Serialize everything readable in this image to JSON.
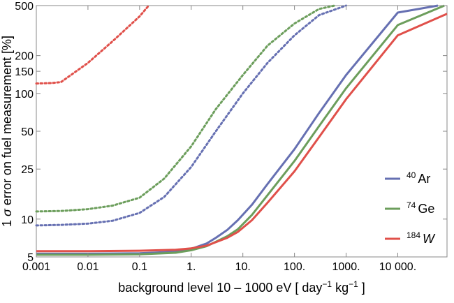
{
  "chart_data": {
    "type": "line",
    "xlabel_parts": [
      "background level 10 – 1000 eV [ day",
      "−1",
      " kg",
      "−1",
      " ]"
    ],
    "ylabel_parts": [
      "1 ",
      "σ",
      " error on fuel measurement [%]"
    ],
    "x_scale": "log",
    "y_scale": "log",
    "xlim": [
      0.001,
      90000
    ],
    "ylim": [
      5,
      500
    ],
    "grid": false,
    "legend_position": "right",
    "x_ticks": [
      0.001,
      0.01,
      0.1,
      1,
      10,
      100,
      1000,
      10000
    ],
    "x_tick_labels": [
      "0.001",
      "0.01",
      "0.1",
      "1.",
      "10.",
      "100.",
      "1000.",
      "10 000."
    ],
    "y_ticks": [
      5,
      10,
      25,
      50,
      100,
      150,
      200,
      500
    ],
    "y_tick_labels": [
      "5",
      "10",
      "25",
      "50",
      "100",
      "150",
      "200",
      "500"
    ],
    "series": [
      {
        "name": "40 Ar",
        "mass": "40",
        "symbol": "Ar",
        "italic": false,
        "color": "#6670b2",
        "style": "solid",
        "x": [
          0.001,
          0.01,
          0.1,
          0.5,
          1,
          2,
          3,
          5,
          8,
          15,
          30,
          100,
          300,
          1000,
          10000,
          60000
        ],
        "y": [
          5.3,
          5.3,
          5.35,
          5.5,
          5.8,
          6.4,
          7.1,
          8.2,
          9.8,
          13,
          19,
          36,
          70,
          140,
          440,
          500
        ]
      },
      {
        "name": "40 Ar (dotted)",
        "color": "#6670b2",
        "style": "dotted",
        "x": [
          0.001,
          0.003,
          0.01,
          0.03,
          0.1,
          0.3,
          1,
          3,
          10,
          30,
          100,
          300,
          1000
        ],
        "y": [
          8.9,
          9.0,
          9.2,
          9.7,
          11.2,
          15,
          26,
          50,
          100,
          175,
          290,
          420,
          500
        ]
      },
      {
        "name": "74 Ge",
        "mass": "74",
        "symbol": "Ge",
        "italic": false,
        "color": "#6c9e5c",
        "style": "solid",
        "x": [
          0.001,
          0.01,
          0.1,
          0.5,
          1,
          2,
          3,
          5,
          8,
          15,
          30,
          100,
          300,
          1000,
          10000,
          80000
        ],
        "y": [
          5.2,
          5.2,
          5.25,
          5.4,
          5.65,
          6.1,
          6.6,
          7.3,
          8.3,
          10.8,
          15.5,
          29,
          55,
          110,
          350,
          500
        ]
      },
      {
        "name": "74 Ge (dotted)",
        "color": "#6c9e5c",
        "style": "dotted",
        "x": [
          0.001,
          0.003,
          0.01,
          0.03,
          0.1,
          0.3,
          1,
          3,
          10,
          30,
          100,
          300,
          600
        ],
        "y": [
          11.5,
          11.6,
          12.0,
          12.8,
          14.8,
          21,
          38,
          75,
          140,
          240,
          360,
          470,
          500
        ]
      },
      {
        "name": "184 W",
        "mass": "184",
        "symbol": "W",
        "italic": true,
        "color": "#e0504a",
        "style": "solid",
        "x": [
          0.001,
          0.01,
          0.1,
          0.5,
          1,
          2,
          3,
          5,
          8,
          15,
          30,
          100,
          300,
          1000,
          10000,
          90000
        ],
        "y": [
          5.55,
          5.55,
          5.6,
          5.7,
          5.85,
          6.15,
          6.55,
          7.1,
          7.9,
          9.8,
          13.5,
          24,
          45,
          90,
          290,
          430
        ]
      },
      {
        "name": "184 W (dotted)",
        "color": "#e0504a",
        "style": "dotted",
        "x": [
          0.001,
          0.002,
          0.003,
          0.01,
          0.03,
          0.1,
          0.15
        ],
        "y": [
          120,
          121,
          123,
          175,
          260,
          410,
          500
        ]
      }
    ]
  }
}
